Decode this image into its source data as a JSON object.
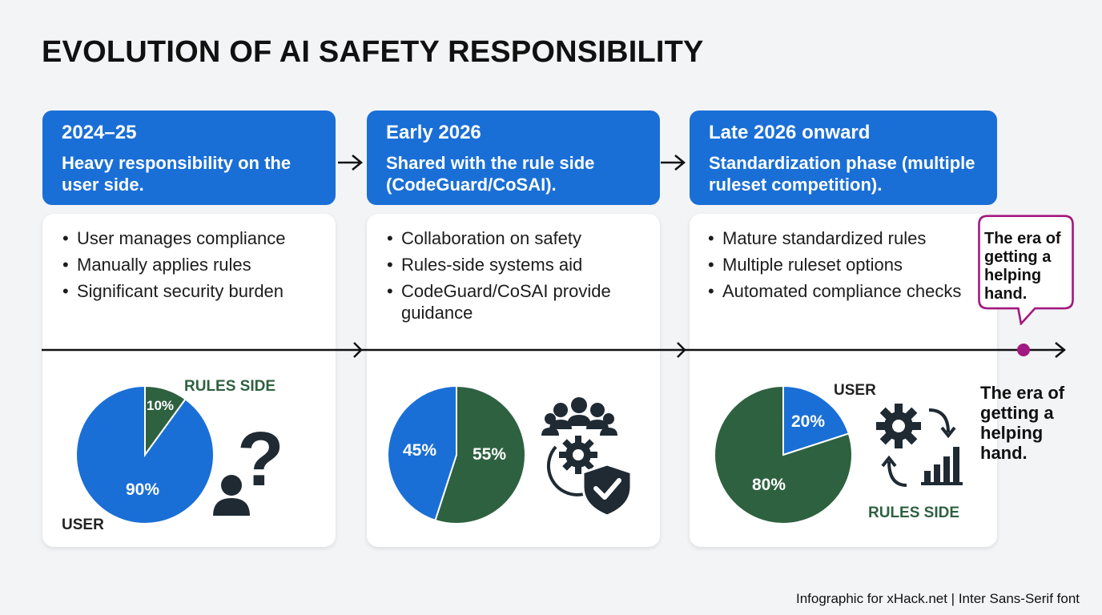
{
  "title": "EVOLUTION OF AI SAFETY RESPONSIBILITY",
  "colors": {
    "blue": "#1a6fd6",
    "green": "#2e6140",
    "magenta": "#a3197f",
    "dark": "#1f2a33"
  },
  "stages": [
    {
      "year": "2024–25",
      "description": "Heavy responsibility on the user side.",
      "bullets": [
        "User manages compliance",
        "Manually applies rules",
        "Significant security burden"
      ],
      "pie": {
        "user_pct": 90,
        "rules_pct": 10,
        "user_label": "USER",
        "rules_label": "RULES SIDE",
        "user_value_text": "90%",
        "rules_value_text": "10%"
      },
      "icon": "person-question-icon"
    },
    {
      "year": "Early 2026",
      "description": "Shared with the rule side (CodeGuard/CoSAI).",
      "bullets": [
        "Collaboration on safety",
        "Rules-side systems aid",
        "CodeGuard/CoSAI provide guidance"
      ],
      "pie": {
        "user_pct": 45,
        "rules_pct": 55,
        "user_value_text": "45%",
        "rules_value_text": "55%"
      },
      "icon": "team-gear-shield-icon"
    },
    {
      "year": "Late 2026 onward",
      "description": "Standardization phase (multiple ruleset competition).",
      "bullets": [
        "Mature standardized rules",
        "Multiple ruleset options",
        "Automated compliance checks"
      ],
      "pie": {
        "user_pct": 20,
        "rules_pct": 80,
        "user_label": "USER",
        "rules_label": "RULES SIDE",
        "user_value_text": "20%",
        "rules_value_text": "80%"
      },
      "icon": "gear-cycle-chart-icon"
    }
  ],
  "callout": "The era of getting a helping hand.",
  "side_note": "The era of getting a helping hand.",
  "footer": "Infographic for xHack.net | Inter Sans-Serif font"
}
